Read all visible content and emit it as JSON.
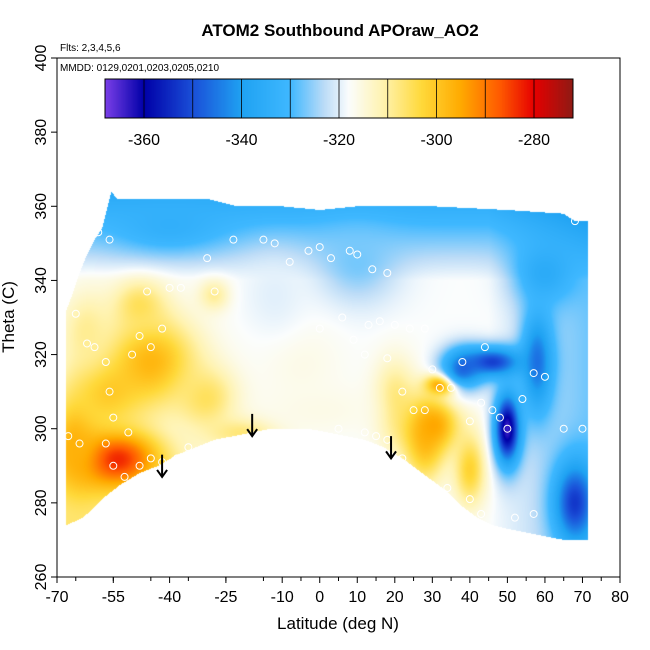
{
  "chart_data": {
    "type": "heatmap",
    "title": "ATOM2 Southbound APOraw_AO2",
    "flights_note": "Flts: 2,3,4,5,6",
    "dates_note": "MMDD: 0129,0201,0203,0205,0210",
    "xlabel": "Latitude (deg N)",
    "ylabel": "Theta (C)",
    "xlim": [
      -70,
      80
    ],
    "ylim": [
      260,
      400
    ],
    "x_ticks": [
      -70,
      -55,
      -40,
      -25,
      -10,
      0,
      10,
      20,
      30,
      40,
      50,
      60,
      70,
      80
    ],
    "y_ticks": [
      260,
      280,
      300,
      320,
      340,
      360,
      380,
      400
    ],
    "colorbar": {
      "range": [
        -368,
        -272
      ],
      "tick_values": [
        -360,
        -340,
        -320,
        -300,
        -280
      ],
      "tick_labels": [
        "-360",
        "-340",
        "-320",
        "-300",
        "-280"
      ],
      "break_values": [
        -360,
        -350,
        -340,
        -330,
        -320,
        -310,
        -300,
        -290,
        -280
      ],
      "stops": [
        {
          "v": -368,
          "c": "#7b3fe8"
        },
        {
          "v": -360,
          "c": "#0000a8"
        },
        {
          "v": -350,
          "c": "#1a4fd8"
        },
        {
          "v": -340,
          "c": "#1fa2f2"
        },
        {
          "v": -330,
          "c": "#3fb8ff"
        },
        {
          "v": -323,
          "c": "#bcdcf7"
        },
        {
          "v": -318,
          "c": "#fbfdfd"
        },
        {
          "v": -311,
          "c": "#fff3b0"
        },
        {
          "v": -303,
          "c": "#ffd93a"
        },
        {
          "v": -295,
          "c": "#ffaa00"
        },
        {
          "v": -287,
          "c": "#ff5a00"
        },
        {
          "v": -280,
          "c": "#e60000"
        },
        {
          "v": -272,
          "c": "#8f1a14"
        }
      ]
    },
    "coverage_top": [
      [
        -67.5,
        332
      ],
      [
        -66,
        336
      ],
      [
        -64,
        342
      ],
      [
        -62,
        347
      ],
      [
        -60,
        351
      ],
      [
        -58,
        354
      ],
      [
        -56.5,
        360
      ],
      [
        -55.5,
        364
      ],
      [
        -54,
        362
      ],
      [
        -50,
        362
      ],
      [
        -45,
        362
      ],
      [
        -40,
        362
      ],
      [
        -30,
        362
      ],
      [
        -22,
        360
      ],
      [
        -10,
        360
      ],
      [
        0,
        359
      ],
      [
        10,
        360
      ],
      [
        30,
        360
      ],
      [
        50,
        359
      ],
      [
        65,
        358
      ],
      [
        68,
        356
      ],
      [
        71.5,
        356
      ]
    ],
    "coverage_bottom": [
      [
        -67.5,
        274
      ],
      [
        -63,
        276
      ],
      [
        -58,
        281
      ],
      [
        -53,
        285
      ],
      [
        -48,
        288
      ],
      [
        -43,
        290
      ],
      [
        -38,
        293
      ],
      [
        -33,
        295
      ],
      [
        -28,
        297
      ],
      [
        -23,
        298
      ],
      [
        -18,
        299
      ],
      [
        -13,
        300
      ],
      [
        -8,
        300
      ],
      [
        -3,
        300
      ],
      [
        2,
        299
      ],
      [
        7,
        298
      ],
      [
        12,
        297
      ],
      [
        17,
        295
      ],
      [
        22,
        292
      ],
      [
        26,
        289
      ],
      [
        30,
        286
      ],
      [
        34,
        283
      ],
      [
        38,
        279
      ],
      [
        42,
        276
      ],
      [
        46,
        274
      ],
      [
        50,
        273
      ],
      [
        55,
        272
      ],
      [
        60,
        271
      ],
      [
        65,
        270
      ],
      [
        70.5,
        270
      ],
      [
        71.5,
        270
      ]
    ],
    "anomalies": [
      {
        "x": -55,
        "y": 292,
        "v": -281,
        "sx": 9,
        "sy": 6
      },
      {
        "x": -65,
        "y": 296,
        "v": -296,
        "sx": 5,
        "sy": 10
      },
      {
        "x": -57,
        "y": 310,
        "v": -301,
        "sx": 7,
        "sy": 7
      },
      {
        "x": -45,
        "y": 318,
        "v": -297,
        "sx": 9,
        "sy": 9
      },
      {
        "x": -48,
        "y": 333,
        "v": -305,
        "sx": 5,
        "sy": 5
      },
      {
        "x": -62,
        "y": 326,
        "v": -309,
        "sx": 5,
        "sy": 8
      },
      {
        "x": -28,
        "y": 336,
        "v": -309,
        "sx": 3,
        "sy": 3
      },
      {
        "x": -30,
        "y": 308,
        "v": -305,
        "sx": 6,
        "sy": 6
      },
      {
        "x": -20,
        "y": 299,
        "v": -306,
        "sx": 7,
        "sy": 3
      },
      {
        "x": 20,
        "y": 307,
        "v": -306,
        "sx": 4,
        "sy": 8
      },
      {
        "x": 28,
        "y": 296,
        "v": -300,
        "sx": 4,
        "sy": 8
      },
      {
        "x": 33,
        "y": 312,
        "v": -281,
        "sx": 3,
        "sy": 2
      },
      {
        "x": 30,
        "y": 301,
        "v": -294,
        "sx": 5,
        "sy": 5
      },
      {
        "x": 40,
        "y": 289,
        "v": -302,
        "sx": 3,
        "sy": 7
      },
      {
        "x": 38,
        "y": 316,
        "v": -345,
        "sx": 4,
        "sy": 4
      },
      {
        "x": 50,
        "y": 300,
        "v": -364,
        "sx": 2.5,
        "sy": 7
      },
      {
        "x": 46,
        "y": 318,
        "v": -352,
        "sx": 6,
        "sy": 3
      },
      {
        "x": 58,
        "y": 318,
        "v": -346,
        "sx": 3,
        "sy": 10
      },
      {
        "x": 68,
        "y": 280,
        "v": -353,
        "sx": 4,
        "sy": 8
      },
      {
        "x": 60,
        "y": 342,
        "v": -336,
        "sx": 6,
        "sy": 6
      },
      {
        "x": -40,
        "y": 355,
        "v": -334,
        "sx": 10,
        "sy": 5
      },
      {
        "x": 10,
        "y": 345,
        "v": -327,
        "sx": 8,
        "sy": 8
      },
      {
        "x": -5,
        "y": 318,
        "v": -316,
        "sx": 8,
        "sy": 8
      },
      {
        "x": -12,
        "y": 336,
        "v": -320,
        "sx": 6,
        "sy": 8
      },
      {
        "x": 0,
        "y": 305,
        "v": -316,
        "sx": 12,
        "sy": 5
      }
    ],
    "samples": [
      {
        "x": -56,
        "y": 351
      },
      {
        "x": -59,
        "y": 353
      },
      {
        "x": -65,
        "y": 331
      },
      {
        "x": -62,
        "y": 323
      },
      {
        "x": -60,
        "y": 322
      },
      {
        "x": -57,
        "y": 318
      },
      {
        "x": -56,
        "y": 310
      },
      {
        "x": -55,
        "y": 303
      },
      {
        "x": -57,
        "y": 296
      },
      {
        "x": -55,
        "y": 290
      },
      {
        "x": -52,
        "y": 287
      },
      {
        "x": -48,
        "y": 290
      },
      {
        "x": -45,
        "y": 292
      },
      {
        "x": -42,
        "y": 291
      },
      {
        "x": -38,
        "y": 292
      },
      {
        "x": -35,
        "y": 295
      },
      {
        "x": -67,
        "y": 298
      },
      {
        "x": -64,
        "y": 296
      },
      {
        "x": -54,
        "y": 282
      },
      {
        "x": -53,
        "y": 283
      },
      {
        "x": -51,
        "y": 299
      },
      {
        "x": -50,
        "y": 320
      },
      {
        "x": -48,
        "y": 325
      },
      {
        "x": -45,
        "y": 322
      },
      {
        "x": -42,
        "y": 327
      },
      {
        "x": -46,
        "y": 337
      },
      {
        "x": -40,
        "y": 338
      },
      {
        "x": -37,
        "y": 338
      },
      {
        "x": -30,
        "y": 346
      },
      {
        "x": -28,
        "y": 337
      },
      {
        "x": -23,
        "y": 351
      },
      {
        "x": -15,
        "y": 351
      },
      {
        "x": -12,
        "y": 350
      },
      {
        "x": -8,
        "y": 345
      },
      {
        "x": -3,
        "y": 348
      },
      {
        "x": 0,
        "y": 349
      },
      {
        "x": 3,
        "y": 346
      },
      {
        "x": 8,
        "y": 348
      },
      {
        "x": 10,
        "y": 347
      },
      {
        "x": 14,
        "y": 343
      },
      {
        "x": 18,
        "y": 342
      },
      {
        "x": 0,
        "y": 327
      },
      {
        "x": 6,
        "y": 330
      },
      {
        "x": 9,
        "y": 324
      },
      {
        "x": 12,
        "y": 320
      },
      {
        "x": 13,
        "y": 328
      },
      {
        "x": 16,
        "y": 329
      },
      {
        "x": 20,
        "y": 328
      },
      {
        "x": 24,
        "y": 327
      },
      {
        "x": 28,
        "y": 327
      },
      {
        "x": 18,
        "y": 319
      },
      {
        "x": 22,
        "y": 310
      },
      {
        "x": 25,
        "y": 305
      },
      {
        "x": 30,
        "y": 316
      },
      {
        "x": 32,
        "y": 311
      },
      {
        "x": 35,
        "y": 311
      },
      {
        "x": 28,
        "y": 305
      },
      {
        "x": 40,
        "y": 302
      },
      {
        "x": 43,
        "y": 307
      },
      {
        "x": 46,
        "y": 305
      },
      {
        "x": 48,
        "y": 303
      },
      {
        "x": 50,
        "y": 300
      },
      {
        "x": 54,
        "y": 308
      },
      {
        "x": 57,
        "y": 315
      },
      {
        "x": 60,
        "y": 314
      },
      {
        "x": 44,
        "y": 322
      },
      {
        "x": 38,
        "y": 318
      },
      {
        "x": 12,
        "y": 299
      },
      {
        "x": 15,
        "y": 298
      },
      {
        "x": 18,
        "y": 297
      },
      {
        "x": 22,
        "y": 292
      },
      {
        "x": 5,
        "y": 300
      },
      {
        "x": 65,
        "y": 300
      },
      {
        "x": 70,
        "y": 300
      },
      {
        "x": 68,
        "y": 356
      },
      {
        "x": 57,
        "y": 277
      },
      {
        "x": 52,
        "y": 276
      },
      {
        "x": 43,
        "y": 277
      },
      {
        "x": 40,
        "y": 281
      },
      {
        "x": 34,
        "y": 284
      }
    ],
    "arrows": [
      {
        "x": -42,
        "y_start": 293,
        "y_end": 287
      },
      {
        "x": -18,
        "y_start": 304,
        "y_end": 298
      },
      {
        "x": 19,
        "y_start": 298,
        "y_end": 292
      }
    ]
  }
}
